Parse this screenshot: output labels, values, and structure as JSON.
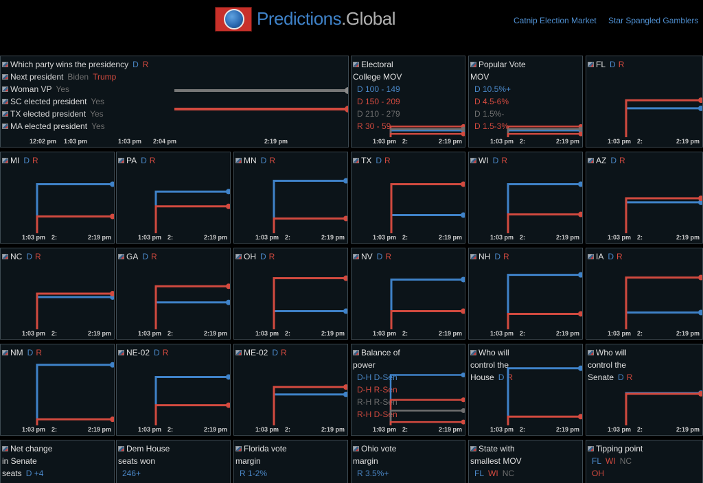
{
  "header": {
    "brand_part1": "Predictions",
    "brand_part2": ".Global",
    "links": [
      "Catnip Election Market",
      "Star Spangled Gamblers"
    ]
  },
  "colors": {
    "dem": "#3f82c8",
    "rep": "#d24a3f",
    "gray": "#6f6f6f",
    "panel_bg": "#0c1419"
  },
  "main_panel": {
    "rows": [
      {
        "label": "Which party wins the presidency",
        "opts": [
          {
            "t": "D",
            "c": "blue"
          },
          {
            "t": "R",
            "c": "red"
          }
        ]
      },
      {
        "label": "Next president",
        "opts": [
          {
            "t": "Biden",
            "c": "gray"
          },
          {
            "t": "Trump",
            "c": "red"
          }
        ]
      },
      {
        "label": "Woman VP",
        "opts": [
          {
            "t": "Yes",
            "c": "gray"
          }
        ]
      },
      {
        "label": "SC elected president",
        "opts": [
          {
            "t": "Yes",
            "c": "gray"
          }
        ]
      },
      {
        "label": "TX elected president",
        "opts": [
          {
            "t": "Yes",
            "c": "gray"
          }
        ]
      },
      {
        "label": "MA elected president",
        "opts": [
          {
            "t": "Yes",
            "c": "gray"
          }
        ]
      }
    ],
    "ticks": [
      "12:02 pm",
      "1:03 pm",
      "1:03 pm",
      "2:04 pm",
      "2:19 pm"
    ]
  },
  "panels": [
    {
      "id": "electoral",
      "title": [
        "Electoral",
        "College MOV"
      ],
      "options": [
        {
          "t": "D 100 - 149",
          "c": "blue"
        },
        {
          "t": "D 150 - 209",
          "c": "red"
        },
        {
          "t": "D 210 - 279",
          "c": "gray"
        },
        {
          "t": "R 30 - 59",
          "c": "red"
        }
      ],
      "ticks": [
        "1:03 pm",
        "2:",
        "2:19 pm"
      ]
    },
    {
      "id": "popular",
      "title": [
        "Popular Vote",
        "MOV"
      ],
      "options": [
        {
          "t": "D 10.5%+",
          "c": "blue"
        },
        {
          "t": "D 4.5-6%",
          "c": "red"
        },
        {
          "t": "D 1.5%-",
          "c": "gray"
        },
        {
          "t": "D 1.5-3%",
          "c": "red"
        }
      ],
      "ticks": [
        "1:03 pm",
        "2:",
        "2:19 pm"
      ]
    },
    {
      "id": "FL",
      "title": [
        "FL"
      ],
      "dr": true,
      "ticks": [
        "1:03 pm",
        "2:",
        "2:19 pm"
      ]
    },
    {
      "id": "MI",
      "title": [
        "MI"
      ],
      "dr": true,
      "ticks": [
        "1:03 pm",
        "2:",
        "2:19 pm"
      ]
    },
    {
      "id": "PA",
      "title": [
        "PA"
      ],
      "dr": true,
      "ticks": [
        "1:03 pm",
        "2:",
        "2:19 pm"
      ]
    },
    {
      "id": "MN",
      "title": [
        "MN"
      ],
      "dr": true,
      "ticks": [
        "1:03 pm",
        "2:",
        "2:19 pm"
      ]
    },
    {
      "id": "TX",
      "title": [
        "TX"
      ],
      "dr": true,
      "ticks": [
        "1:03 pm",
        "2:",
        "2:19 pm"
      ]
    },
    {
      "id": "WI",
      "title": [
        "WI"
      ],
      "dr": true,
      "ticks": [
        "1:03 pm",
        "2:",
        "2:19 pm"
      ]
    },
    {
      "id": "AZ",
      "title": [
        "AZ"
      ],
      "dr": true,
      "ticks": [
        "1:03 pm",
        "2:",
        "2:19 pm"
      ]
    },
    {
      "id": "NC",
      "title": [
        "NC"
      ],
      "dr": true,
      "ticks": [
        "1:03 pm",
        "2:",
        "2:19 pm"
      ]
    },
    {
      "id": "GA",
      "title": [
        "GA"
      ],
      "dr": true,
      "ticks": [
        "1:03 pm",
        "2:",
        "2:19 pm"
      ]
    },
    {
      "id": "OH",
      "title": [
        "OH"
      ],
      "dr": true,
      "ticks": [
        "1:03 pm",
        "2:",
        "2:19 pm"
      ]
    },
    {
      "id": "NV",
      "title": [
        "NV"
      ],
      "dr": true,
      "ticks": [
        "1:03 pm",
        "2:",
        "2:19 pm"
      ]
    },
    {
      "id": "NH",
      "title": [
        "NH"
      ],
      "dr": true,
      "ticks": [
        "1:03 pm",
        "2:",
        "2:19 pm"
      ]
    },
    {
      "id": "IA",
      "title": [
        "IA"
      ],
      "dr": true,
      "ticks": [
        "1:03 pm",
        "2:",
        "2:19 pm"
      ]
    },
    {
      "id": "NM",
      "title": [
        "NM"
      ],
      "dr": true,
      "ticks": [
        "1:03 pm",
        "2:",
        "2:19 pm"
      ]
    },
    {
      "id": "NE-02",
      "title": [
        "NE-02"
      ],
      "dr": true,
      "ticks": [
        "1:03 pm",
        "2:",
        "2:19 pm"
      ]
    },
    {
      "id": "ME-02",
      "title": [
        "ME-02"
      ],
      "dr": true,
      "ticks": [
        "1:03 pm",
        "2:",
        "2:19 pm"
      ]
    },
    {
      "id": "balance",
      "title": [
        "Balance of",
        "power"
      ],
      "options": [
        {
          "t": "D-H D-Sen",
          "c": "blue"
        },
        {
          "t": "D-H R-Sen",
          "c": "red"
        },
        {
          "t": "R-H R-Sen",
          "c": "gray"
        },
        {
          "t": "R-H D-Sen",
          "c": "red"
        }
      ],
      "ticks": [
        "1:03 pm",
        "2:",
        "2:19 pm"
      ]
    },
    {
      "id": "house",
      "title": [
        "Who will",
        "control the",
        "House"
      ],
      "dr": true,
      "ticks": [
        "1:03 pm",
        "2:",
        "2:19 pm"
      ]
    },
    {
      "id": "senate",
      "title": [
        "Who will",
        "control the",
        "Senate"
      ],
      "dr": true,
      "ticks": [
        "1:03 pm",
        "2:",
        "2:19 pm"
      ]
    },
    {
      "id": "netchange",
      "title": [
        "Net change",
        "in Senate",
        "seats"
      ],
      "inline_opt": {
        "t": "D +4",
        "c": "blue"
      },
      "options": []
    },
    {
      "id": "demhouse",
      "title": [
        "Dem House",
        "seats won"
      ],
      "options": [
        {
          "t": "246+",
          "c": "blue"
        }
      ]
    },
    {
      "id": "flmargin",
      "title": [
        "Florida vote",
        "margin"
      ],
      "options": [
        {
          "t": "R 1-2%",
          "c": "blue"
        }
      ]
    },
    {
      "id": "ohmargin",
      "title": [
        "Ohio vote",
        "margin"
      ],
      "options": [
        {
          "t": "R 3.5%+",
          "c": "blue"
        }
      ]
    },
    {
      "id": "smallest",
      "title": [
        "State with",
        "smallest MOV"
      ],
      "options_inline": [
        {
          "t": "FL",
          "c": "blue"
        },
        {
          "t": "WI",
          "c": "red"
        },
        {
          "t": "NC",
          "c": "gray"
        }
      ]
    },
    {
      "id": "tipping",
      "title": [
        "Tipping point"
      ],
      "options_inline": [
        {
          "t": "FL",
          "c": "blue"
        },
        {
          "t": "WI",
          "c": "red"
        },
        {
          "t": "NC",
          "c": "gray"
        }
      ],
      "options": [
        {
          "t": "OH",
          "c": "red"
        }
      ]
    }
  ],
  "market_series": {
    "FL": {
      "D": 0.43,
      "R": 0.55
    },
    "MI": {
      "D": 0.73,
      "R": 0.25
    },
    "PA": {
      "D": 0.62,
      "R": 0.4
    },
    "MN": {
      "D": 0.78,
      "R": 0.22
    },
    "TX": {
      "D": 0.27,
      "R": 0.73
    },
    "WI": {
      "D": 0.73,
      "R": 0.28
    },
    "AZ": {
      "D": 0.46,
      "R": 0.52
    },
    "NC": {
      "D": 0.48,
      "R": 0.53
    },
    "GA": {
      "D": 0.4,
      "R": 0.64
    },
    "OH": {
      "D": 0.27,
      "R": 0.76
    },
    "NV": {
      "D": 0.74,
      "R": 0.27
    },
    "NH": {
      "D": 0.81,
      "R": 0.23
    },
    "IA": {
      "D": 0.25,
      "R": 0.77
    },
    "NM": {
      "D": 0.9,
      "R": 0.09
    },
    "NE-02": {
      "D": 0.72,
      "R": 0.3
    },
    "ME-02": {
      "D": 0.46,
      "R": 0.57
    },
    "house": {
      "D": 0.85,
      "R": 0.13
    },
    "senate": {
      "D": 0.48,
      "R": 0.47
    }
  }
}
